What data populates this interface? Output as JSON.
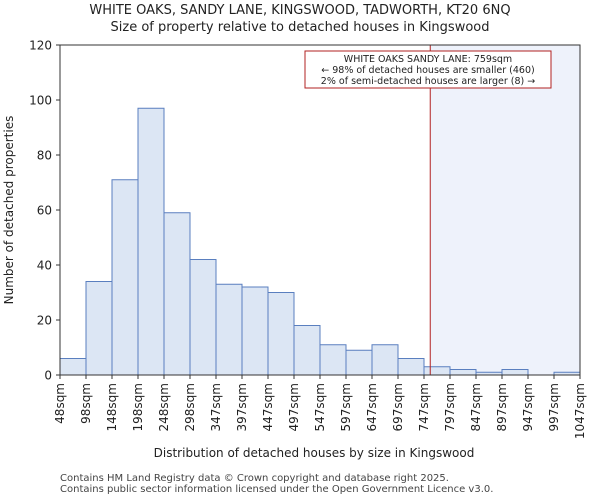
{
  "chart_data": {
    "type": "bar",
    "title": "WHITE OAKS, SANDY LANE, KINGSWOOD, TADWORTH, KT20 6NQ",
    "subtitle": "Size of property relative to detached houses in Kingswood",
    "xlabel": "Distribution of detached houses by size in Kingswood",
    "ylabel": "Number of detached properties",
    "ylim": [
      0,
      120
    ],
    "yticks": [
      0,
      20,
      40,
      60,
      80,
      100,
      120
    ],
    "bin_edges": [
      48,
      98,
      148,
      198,
      248,
      298,
      347,
      397,
      447,
      497,
      547,
      597,
      647,
      697,
      747,
      797,
      847,
      897,
      947,
      997,
      1047
    ],
    "tick_labels": [
      "48sqm",
      "98sqm",
      "148sqm",
      "198sqm",
      "248sqm",
      "298sqm",
      "347sqm",
      "397sqm",
      "447sqm",
      "497sqm",
      "547sqm",
      "597sqm",
      "647sqm",
      "697sqm",
      "747sqm",
      "797sqm",
      "847sqm",
      "897sqm",
      "947sqm",
      "997sqm",
      "1047sqm"
    ],
    "values": [
      6,
      34,
      71,
      97,
      59,
      42,
      33,
      32,
      30,
      18,
      11,
      9,
      11,
      6,
      3,
      2,
      1,
      2,
      0,
      1
    ],
    "marker": {
      "value": 759,
      "color": "#b22222"
    },
    "annotation": {
      "line1": "WHITE OAKS SANDY LANE: 759sqm",
      "line2": "← 98% of detached houses are smaller (460)",
      "line3": "2% of semi-detached houses are larger (8) →"
    },
    "colors": {
      "bar_fill": "#dce6f4",
      "bar_edge": "#5a7fbf",
      "highlight_bg": "#eef2fb"
    }
  },
  "footer": {
    "line1": "Contains HM Land Registry data © Crown copyright and database right 2025.",
    "line2": "Contains public sector information licensed under the Open Government Licence v3.0."
  }
}
